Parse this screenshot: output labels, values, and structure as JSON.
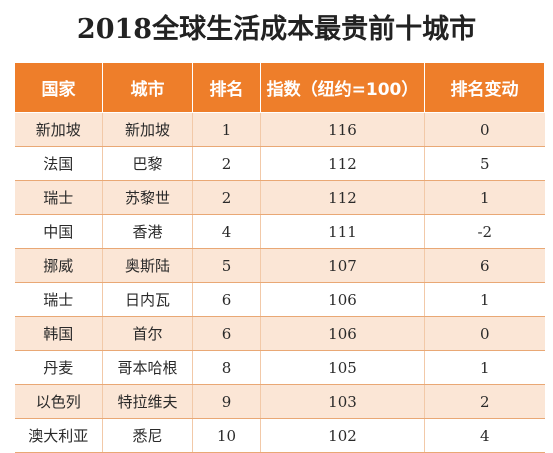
{
  "title": "2018全球生活成本最贵前十城市",
  "headers": [
    "国家",
    "城市",
    "排名",
    "指数（纽约=100）",
    "排名变动"
  ],
  "rows": [
    [
      "新加坡",
      "新加坡",
      "1",
      "116",
      "0"
    ],
    [
      "法国",
      "巴黎",
      "2",
      "112",
      "5"
    ],
    [
      "瑞士",
      "苏黎世",
      "2",
      "112",
      "1"
    ],
    [
      "中国",
      "香港",
      "4",
      "111",
      "-2"
    ],
    [
      "挪威",
      "奥斯陆",
      "5",
      "107",
      "6"
    ],
    [
      "瑞士",
      "日内瓦",
      "6",
      "106",
      "1"
    ],
    [
      "韩国",
      "首尔",
      "6",
      "106",
      "0"
    ],
    [
      "丹麦",
      "哥本哈根",
      "8",
      "105",
      "1"
    ],
    [
      "以色列",
      "特拉维夫",
      "9",
      "103",
      "2"
    ],
    [
      "澳大利亚",
      "悉尼",
      "10",
      "102",
      "4"
    ]
  ],
  "colors": {
    "header_bg": "#ee7e2a",
    "stripe_bg": "#fbe6d6"
  }
}
